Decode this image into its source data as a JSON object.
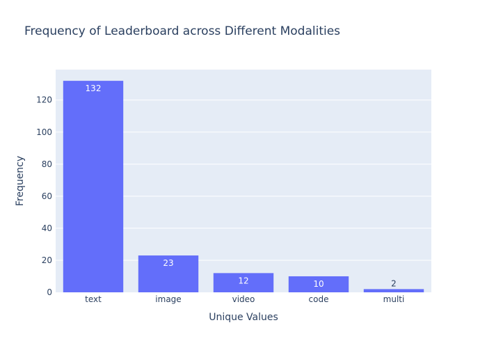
{
  "chart_data": {
    "type": "bar",
    "title": "Frequency of Leaderboard across Different Modalities",
    "xlabel": "Unique Values",
    "ylabel": "Frequency",
    "categories": [
      "text",
      "image",
      "video",
      "code",
      "multi"
    ],
    "values": [
      132,
      23,
      12,
      10,
      2
    ],
    "ylim": [
      0,
      139
    ],
    "yticks": [
      0,
      20,
      40,
      60,
      80,
      100,
      120
    ],
    "grid": true,
    "colors": {
      "bar": "#636efa",
      "plot_bg": "#e5ecf6",
      "grid": "#ffffff",
      "text": "#2a3f5f"
    }
  }
}
